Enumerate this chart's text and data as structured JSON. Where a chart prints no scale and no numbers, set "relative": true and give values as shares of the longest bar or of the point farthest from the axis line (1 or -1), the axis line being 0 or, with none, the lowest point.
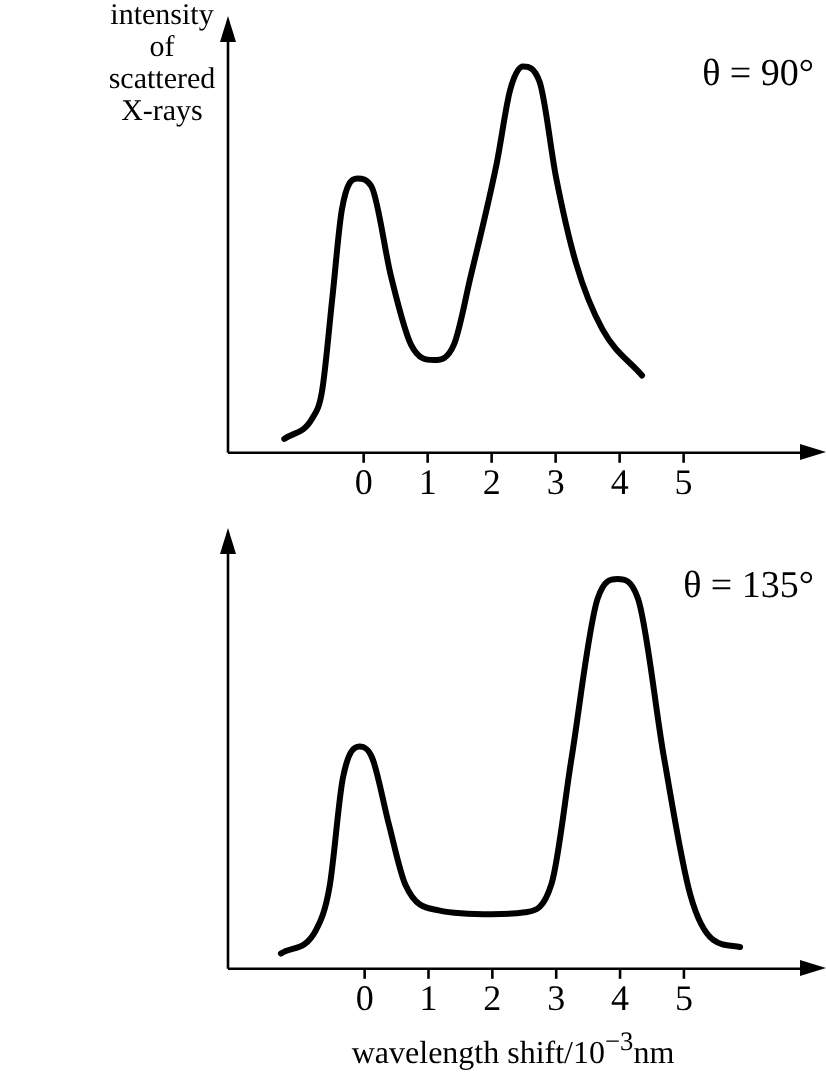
{
  "chart_data": [
    {
      "type": "line",
      "relative": true,
      "ylabel": "intensity of scattered X-rays",
      "annotations": [
        "θ = 90°"
      ],
      "xlim": [
        -2.12,
        7.1
      ],
      "xticks": [
        0,
        1,
        2,
        3,
        4,
        5
      ],
      "marker": "none",
      "grid": false,
      "x": [
        -1.24,
        -0.8,
        -0.65,
        -0.49,
        -0.34,
        -0.1,
        0.12,
        0.43,
        0.74,
        1.1,
        1.41,
        1.67,
        2.08,
        2.29,
        2.49,
        2.75,
        3.01,
        3.32,
        3.73,
        4.35
      ],
      "series": [
        {
          "color": "#000000",
          "values": [
            0.036,
            0.09,
            0.16,
            0.4,
            0.63,
            0.71,
            0.69,
            0.455,
            0.28,
            0.24,
            0.28,
            0.455,
            0.75,
            0.94,
            1,
            0.96,
            0.71,
            0.49,
            0.32,
            0.2
          ]
        }
      ]
    },
    {
      "type": "line",
      "relative": true,
      "xlabel": "wavelength shift/10$^{−3}$nm",
      "annotations": [
        "θ = 135°"
      ],
      "xlim": [
        -2.14,
        7.1
      ],
      "xticks": [
        0,
        1,
        2,
        3,
        4,
        5
      ],
      "marker": "none",
      "grid": false,
      "x": [
        -1.31,
        -0.76,
        -0.55,
        -0.34,
        -0.08,
        0.12,
        0.38,
        0.64,
        1.16,
        1.99,
        2.51,
        2.93,
        3.24,
        3.65,
        3.96,
        4.28,
        4.69,
        5.1,
        5.46,
        5.88
      ],
      "series": [
        {
          "color": "#000000",
          "values": [
            0.039,
            0.1,
            0.21,
            0.49,
            0.57,
            0.54,
            0.37,
            0.215,
            0.15,
            0.14,
            0.145,
            0.22,
            0.54,
            0.95,
            1,
            0.95,
            0.54,
            0.19,
            0.074,
            0.056
          ]
        }
      ]
    }
  ]
}
